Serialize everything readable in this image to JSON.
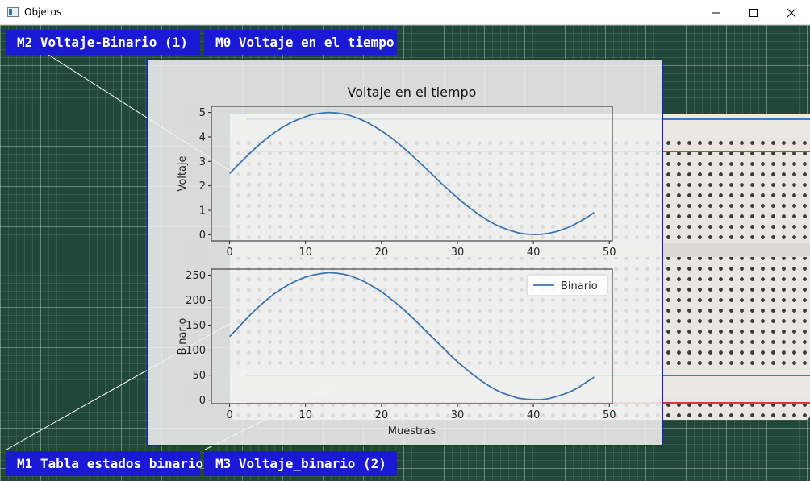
{
  "window": {
    "title": "Objetos",
    "icon": "app-window-icon"
  },
  "window_controls": [
    "minimize-icon",
    "maximize-icon",
    "close-icon"
  ],
  "markers": [
    {
      "id": "m2",
      "label": "M2  Voltaje-Binario (1)"
    },
    {
      "id": "m0",
      "label": "M0  Voltaje en el tiempo"
    },
    {
      "id": "m1",
      "label": "M1  Tabla estados binarios"
    },
    {
      "id": "m3",
      "label": "M3  Voltaje_binario (2)"
    }
  ],
  "colors": {
    "marker_blue": "#1a1ad6",
    "series": "#3b75af",
    "mat_green": "#21473a"
  },
  "chart_data": [
    {
      "type": "line",
      "title": "Voltaje en el tiempo",
      "xlabel": "",
      "ylabel": "Voltaje",
      "xlim": [
        -2.4,
        50.4
      ],
      "ylim": [
        -0.25,
        5.25
      ],
      "xticks": [
        0,
        10,
        20,
        30,
        40,
        50
      ],
      "yticks": [
        0,
        1,
        2,
        3,
        4,
        5
      ],
      "legend": null,
      "x": [
        0,
        1,
        2,
        3,
        4,
        5,
        6,
        7,
        8,
        9,
        10,
        11,
        12,
        13,
        14,
        15,
        16,
        17,
        18,
        19,
        20,
        21,
        22,
        23,
        24,
        25,
        26,
        27,
        28,
        29,
        30,
        31,
        32,
        33,
        34,
        35,
        36,
        37,
        38,
        39,
        40,
        41,
        42,
        43,
        44,
        45,
        46,
        47,
        48
      ],
      "series": [
        {
          "values": [
            2.5,
            2.82,
            3.13,
            3.43,
            3.71,
            3.97,
            4.2,
            4.4,
            4.57,
            4.71,
            4.83,
            4.92,
            4.97,
            5.0,
            4.98,
            4.94,
            4.86,
            4.75,
            4.61,
            4.44,
            4.25,
            4.03,
            3.79,
            3.53,
            3.25,
            2.96,
            2.67,
            2.37,
            2.07,
            1.79,
            1.51,
            1.25,
            1.01,
            0.79,
            0.59,
            0.42,
            0.28,
            0.17,
            0.08,
            0.03,
            0.01,
            0.02,
            0.06,
            0.13,
            0.23,
            0.36,
            0.52,
            0.7,
            0.91
          ]
        }
      ]
    },
    {
      "type": "line",
      "title": "",
      "xlabel": "Muestras",
      "ylabel": "Binario",
      "xlim": [
        -2.4,
        50.4
      ],
      "ylim": [
        -7,
        262
      ],
      "xticks": [
        0,
        10,
        20,
        30,
        40,
        50
      ],
      "yticks": [
        0,
        50,
        100,
        150,
        200,
        250
      ],
      "legend": "top-right",
      "x": [
        0,
        1,
        2,
        3,
        4,
        5,
        6,
        7,
        8,
        9,
        10,
        11,
        12,
        13,
        14,
        15,
        16,
        17,
        18,
        19,
        20,
        21,
        22,
        23,
        24,
        25,
        26,
        27,
        28,
        29,
        30,
        31,
        32,
        33,
        34,
        35,
        36,
        37,
        38,
        39,
        40,
        41,
        42,
        43,
        44,
        45,
        46,
        47,
        48
      ],
      "series": [
        {
          "name": "Binario",
          "values": [
            127,
            143,
            159,
            175,
            189,
            202,
            214,
            224,
            233,
            240,
            246,
            250,
            253,
            255,
            254,
            252,
            248,
            242,
            235,
            226,
            217,
            205,
            193,
            180,
            166,
            151,
            136,
            121,
            106,
            91,
            77,
            64,
            52,
            40,
            30,
            21,
            14,
            9,
            4,
            2,
            1,
            1,
            3,
            7,
            12,
            18,
            26,
            36,
            46
          ]
        }
      ]
    }
  ]
}
